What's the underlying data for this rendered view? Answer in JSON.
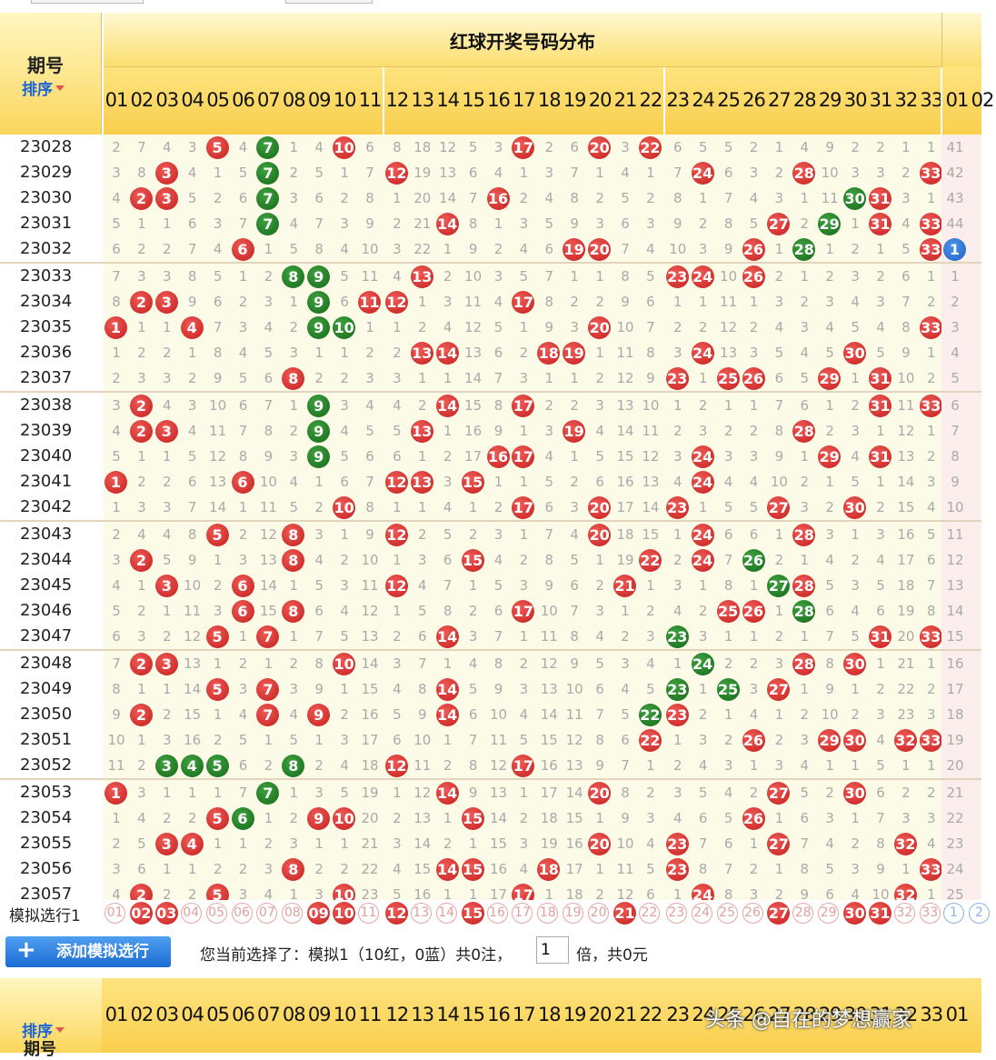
{
  "header": {
    "period_label": "期号",
    "sort_label": "排序",
    "red_title": "红球开奖号码分布"
  },
  "red_numbers": [
    "01",
    "02",
    "03",
    "04",
    "05",
    "06",
    "07",
    "08",
    "09",
    "10",
    "11",
    "12",
    "13",
    "14",
    "15",
    "16",
    "17",
    "18",
    "19",
    "20",
    "21",
    "22",
    "23",
    "24",
    "25",
    "26",
    "27",
    "28",
    "29",
    "30",
    "31",
    "32",
    "33"
  ],
  "blue_numbers": [
    "01",
    "02"
  ],
  "rows": [
    {
      "issue": "23028",
      "c": [
        2,
        7,
        4,
        3,
        "R5",
        4,
        "G7",
        1,
        4,
        "R10",
        6,
        8,
        18,
        12,
        5,
        3,
        "R17",
        2,
        6,
        "R20",
        3,
        "R22",
        6,
        5,
        5,
        2,
        1,
        4,
        9,
        2,
        2,
        1,
        1
      ],
      "b": "41"
    },
    {
      "issue": "23029",
      "c": [
        3,
        8,
        "R3",
        4,
        1,
        5,
        "G7",
        2,
        5,
        1,
        7,
        "R12",
        19,
        13,
        6,
        4,
        1,
        3,
        7,
        1,
        4,
        1,
        7,
        "R24",
        6,
        3,
        2,
        "R28",
        10,
        3,
        3,
        2,
        "R33"
      ],
      "b": "42"
    },
    {
      "issue": "23030",
      "c": [
        4,
        "R2",
        "R3",
        5,
        2,
        6,
        "G7",
        3,
        6,
        2,
        8,
        1,
        20,
        14,
        7,
        "R16",
        2,
        4,
        8,
        2,
        5,
        2,
        8,
        1,
        7,
        4,
        3,
        1,
        11,
        "G30",
        "R31",
        3,
        1
      ],
      "b": "43"
    },
    {
      "issue": "23031",
      "c": [
        5,
        1,
        1,
        6,
        3,
        7,
        "G7",
        4,
        7,
        3,
        9,
        2,
        21,
        "R14",
        8,
        1,
        3,
        5,
        9,
        3,
        6,
        3,
        9,
        2,
        8,
        5,
        "R27",
        2,
        "G29",
        1,
        "R31",
        4,
        "R33"
      ],
      "b": "44"
    },
    {
      "issue": "23032",
      "c": [
        6,
        2,
        2,
        7,
        4,
        "R6",
        1,
        5,
        8,
        4,
        10,
        3,
        22,
        1,
        9,
        2,
        4,
        6,
        "R19",
        "R20",
        7,
        4,
        10,
        3,
        9,
        "R26",
        1,
        "G28",
        1,
        2,
        1,
        5,
        "R33"
      ],
      "b": "B1"
    },
    {
      "issue": "23033",
      "c": [
        7,
        3,
        3,
        8,
        5,
        1,
        2,
        "G8",
        "G9",
        5,
        11,
        4,
        "R13",
        2,
        10,
        3,
        5,
        7,
        1,
        1,
        8,
        5,
        "R23",
        "R24",
        10,
        "R26",
        2,
        1,
        2,
        3,
        2,
        6,
        1
      ],
      "b": "1"
    },
    {
      "issue": "23034",
      "c": [
        8,
        "R2",
        "R3",
        9,
        6,
        2,
        3,
        1,
        "G9",
        6,
        "R11",
        "R12",
        1,
        3,
        11,
        4,
        "R17",
        8,
        2,
        2,
        9,
        6,
        1,
        1,
        11,
        1,
        3,
        2,
        3,
        4,
        3,
        7,
        2
      ],
      "b": "2"
    },
    {
      "issue": "23035",
      "c": [
        "R1",
        1,
        1,
        "R4",
        7,
        3,
        4,
        2,
        "G9",
        "G10",
        1,
        1,
        2,
        4,
        12,
        5,
        1,
        9,
        3,
        "R20",
        10,
        7,
        2,
        2,
        12,
        2,
        4,
        3,
        4,
        5,
        4,
        8,
        "R33"
      ],
      "b": "3"
    },
    {
      "issue": "23036",
      "c": [
        1,
        2,
        2,
        1,
        8,
        4,
        5,
        3,
        1,
        1,
        2,
        2,
        "R13",
        "R14",
        13,
        6,
        2,
        "R18",
        "R19",
        1,
        11,
        8,
        3,
        "R24",
        13,
        3,
        5,
        4,
        5,
        "R30",
        5,
        9,
        1
      ],
      "b": "4"
    },
    {
      "issue": "23037",
      "c": [
        2,
        3,
        3,
        2,
        9,
        5,
        6,
        "R8",
        2,
        2,
        3,
        3,
        1,
        1,
        14,
        7,
        3,
        1,
        1,
        2,
        12,
        9,
        "R23",
        1,
        "R25",
        "R26",
        6,
        5,
        "R29",
        1,
        "R31",
        10,
        2
      ],
      "b": "5"
    },
    {
      "issue": "23038",
      "c": [
        3,
        "R2",
        4,
        3,
        10,
        6,
        7,
        1,
        "G9",
        3,
        4,
        4,
        2,
        "R14",
        15,
        8,
        "R17",
        2,
        2,
        3,
        13,
        10,
        1,
        2,
        1,
        1,
        7,
        6,
        1,
        2,
        "R31",
        11,
        "R33"
      ],
      "b": "6"
    },
    {
      "issue": "23039",
      "c": [
        4,
        "R2",
        "R3",
        4,
        11,
        7,
        8,
        2,
        "G9",
        4,
        5,
        5,
        "R13",
        1,
        16,
        9,
        1,
        3,
        "R19",
        4,
        14,
        11,
        2,
        3,
        2,
        2,
        8,
        "R28",
        2,
        3,
        1,
        12,
        1
      ],
      "b": "7"
    },
    {
      "issue": "23040",
      "c": [
        5,
        1,
        1,
        5,
        12,
        8,
        9,
        3,
        "G9",
        5,
        6,
        6,
        1,
        2,
        17,
        "R16",
        "R17",
        4,
        1,
        5,
        15,
        12,
        3,
        "R24",
        3,
        3,
        9,
        1,
        "R29",
        4,
        "R31",
        13,
        2
      ],
      "b": "8"
    },
    {
      "issue": "23041",
      "c": [
        "R1",
        2,
        2,
        6,
        13,
        "R6",
        10,
        4,
        1,
        6,
        7,
        "R12",
        "R13",
        3,
        "R15",
        1,
        1,
        5,
        2,
        6,
        16,
        13,
        4,
        "R24",
        4,
        4,
        10,
        2,
        1,
        5,
        1,
        14,
        3
      ],
      "b": "9"
    },
    {
      "issue": "23042",
      "c": [
        1,
        3,
        3,
        7,
        14,
        1,
        11,
        5,
        2,
        "R10",
        8,
        1,
        1,
        4,
        1,
        2,
        "R17",
        6,
        3,
        "R20",
        17,
        14,
        "R23",
        1,
        5,
        5,
        "R27",
        3,
        2,
        "R30",
        2,
        15,
        4
      ],
      "b": "10"
    },
    {
      "issue": "23043",
      "c": [
        2,
        4,
        4,
        8,
        "R5",
        2,
        12,
        "R8",
        3,
        1,
        9,
        "R12",
        2,
        5,
        2,
        3,
        1,
        7,
        4,
        "R20",
        18,
        15,
        1,
        "R24",
        6,
        6,
        1,
        "R28",
        3,
        1,
        3,
        16,
        5
      ],
      "b": "11"
    },
    {
      "issue": "23044",
      "c": [
        3,
        "R2",
        5,
        9,
        1,
        3,
        13,
        "R8",
        4,
        2,
        10,
        1,
        3,
        6,
        "R15",
        4,
        2,
        8,
        5,
        1,
        19,
        "R22",
        2,
        "R24",
        7,
        "G26",
        2,
        1,
        4,
        2,
        4,
        17,
        6
      ],
      "b": "12"
    },
    {
      "issue": "23045",
      "c": [
        4,
        1,
        "R3",
        10,
        2,
        "R6",
        14,
        1,
        5,
        3,
        11,
        "R12",
        4,
        7,
        1,
        5,
        3,
        9,
        6,
        2,
        "R21",
        1,
        3,
        1,
        8,
        1,
        "G27",
        "R28",
        5,
        3,
        5,
        18,
        7
      ],
      "b": "13"
    },
    {
      "issue": "23046",
      "c": [
        5,
        2,
        1,
        11,
        3,
        "R6",
        15,
        "R8",
        6,
        4,
        12,
        1,
        5,
        8,
        2,
        6,
        "R17",
        10,
        7,
        3,
        1,
        2,
        4,
        2,
        "R25",
        "R26",
        1,
        "G28",
        6,
        4,
        6,
        19,
        8
      ],
      "b": "14"
    },
    {
      "issue": "23047",
      "c": [
        6,
        3,
        2,
        12,
        "R5",
        1,
        "R7",
        1,
        7,
        5,
        13,
        2,
        6,
        "R14",
        3,
        7,
        1,
        11,
        8,
        4,
        2,
        3,
        "G23",
        3,
        1,
        1,
        2,
        1,
        7,
        5,
        "R31",
        20,
        "R33"
      ],
      "b": "15"
    },
    {
      "issue": "23048",
      "c": [
        7,
        "R2",
        "R3",
        13,
        1,
        2,
        1,
        2,
        8,
        "R10",
        14,
        3,
        7,
        1,
        4,
        8,
        2,
        12,
        9,
        5,
        3,
        4,
        1,
        "G24",
        2,
        2,
        3,
        "R28",
        8,
        "R30",
        1,
        21,
        1
      ],
      "b": "16"
    },
    {
      "issue": "23049",
      "c": [
        8,
        1,
        1,
        14,
        "R5",
        3,
        "R7",
        3,
        9,
        1,
        15,
        4,
        8,
        "R14",
        5,
        9,
        3,
        13,
        10,
        6,
        4,
        5,
        "G23",
        1,
        "G25",
        3,
        "R27",
        1,
        9,
        1,
        2,
        22,
        2
      ],
      "b": "17"
    },
    {
      "issue": "23050",
      "c": [
        9,
        "R2",
        2,
        15,
        1,
        4,
        "R7",
        4,
        "R9",
        2,
        16,
        5,
        9,
        "R14",
        6,
        10,
        4,
        14,
        11,
        7,
        5,
        "G22",
        "R23",
        2,
        1,
        4,
        1,
        2,
        10,
        2,
        3,
        23,
        3
      ],
      "b": "18"
    },
    {
      "issue": "23051",
      "c": [
        10,
        1,
        3,
        16,
        2,
        5,
        1,
        5,
        1,
        3,
        17,
        6,
        10,
        1,
        7,
        11,
        5,
        15,
        12,
        8,
        6,
        "R22",
        1,
        3,
        2,
        "R26",
        2,
        3,
        "R29",
        "R30",
        4,
        "R32",
        "R33"
      ],
      "b": "19"
    },
    {
      "issue": "23052",
      "c": [
        11,
        2,
        "G3",
        "G4",
        "G5",
        6,
        2,
        "G8",
        2,
        4,
        18,
        "R12",
        11,
        2,
        8,
        12,
        "R17",
        16,
        13,
        9,
        7,
        1,
        2,
        4,
        3,
        1,
        3,
        4,
        1,
        1,
        5,
        1,
        1
      ],
      "b": "20"
    },
    {
      "issue": "23053",
      "c": [
        "R1",
        3,
        1,
        1,
        1,
        7,
        "G7",
        1,
        3,
        5,
        19,
        1,
        12,
        "R14",
        9,
        13,
        1,
        17,
        14,
        "R20",
        8,
        2,
        3,
        5,
        4,
        2,
        "R27",
        5,
        2,
        "R30",
        6,
        2,
        2
      ],
      "b": "21"
    },
    {
      "issue": "23054",
      "c": [
        1,
        4,
        2,
        2,
        "R5",
        "G6",
        1,
        2,
        "R9",
        "R10",
        20,
        2,
        13,
        1,
        "R15",
        14,
        2,
        18,
        15,
        1,
        9,
        3,
        4,
        6,
        5,
        "R26",
        1,
        6,
        3,
        1,
        7,
        3,
        3
      ],
      "b": "22"
    },
    {
      "issue": "23055",
      "c": [
        2,
        5,
        "R3",
        "R4",
        1,
        1,
        2,
        3,
        1,
        1,
        21,
        3,
        14,
        2,
        1,
        15,
        3,
        19,
        16,
        "R20",
        10,
        4,
        "R23",
        7,
        6,
        1,
        "R27",
        7,
        4,
        2,
        8,
        "R32",
        4
      ],
      "b": "23"
    },
    {
      "issue": "23056",
      "c": [
        3,
        6,
        1,
        1,
        2,
        2,
        3,
        "R8",
        2,
        2,
        22,
        4,
        15,
        "R14",
        "R15",
        16,
        4,
        "R18",
        17,
        1,
        11,
        5,
        "R23",
        8,
        7,
        2,
        1,
        8,
        5,
        3,
        9,
        1,
        "R33"
      ],
      "b": "24"
    },
    {
      "issue": "23057",
      "c": [
        4,
        "R2",
        2,
        2,
        "R5",
        3,
        4,
        1,
        3,
        "R10",
        23,
        5,
        16,
        1,
        1,
        17,
        "R17",
        1,
        18,
        2,
        12,
        6,
        1,
        "R24",
        8,
        3,
        2,
        9,
        6,
        4,
        10,
        "R32",
        1
      ],
      "b": "25"
    }
  ],
  "sim": {
    "label": "模拟选行1",
    "picked": [
      "02",
      "03",
      "09",
      "10",
      "12",
      "15",
      "21",
      "27",
      "30",
      "31"
    ]
  },
  "bar": {
    "add_label": "添加模拟选行",
    "text1": "您当前选择了：模拟1（10红，0蓝）共0注，",
    "multiplier": "1",
    "text2": "倍，共0元"
  },
  "footer": {
    "sort_label": "排序",
    "period_label": "期号"
  },
  "watermark": "头条 @自在的梦想赢家",
  "colors": {
    "red_ball": "#d32f2f",
    "green_ball": "#1f7a1f",
    "blue_ball": "#1c64c4",
    "header_yellow": "#fbd65c"
  }
}
